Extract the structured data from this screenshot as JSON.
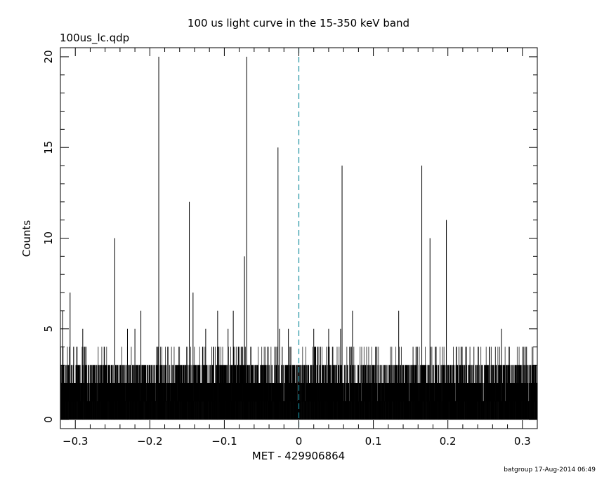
{
  "chart_data": {
    "type": "bar",
    "title": "100 us light curve in the 15-350 keV band",
    "file_label": "100us_lc.qdp",
    "xlabel": "MET - 429906864",
    "ylabel": "Counts",
    "footer": "batgroup 17-Aug-2014 06:49",
    "xlim": [
      -0.32,
      0.32
    ],
    "ylim": [
      -0.5,
      20.5
    ],
    "x_ticks": [
      -0.3,
      -0.2,
      -0.1,
      0,
      0.1,
      0.2,
      0.3
    ],
    "x_tick_labels": [
      "−0.3",
      "−0.2",
      "−0.1",
      "0",
      "0.1",
      "0.2",
      "0.3"
    ],
    "y_ticks": [
      0,
      5,
      10,
      15,
      20
    ],
    "y_tick_labels": [
      "0",
      "5",
      "10",
      "15",
      "20"
    ],
    "reference_line": {
      "x": 0,
      "style": "dashed",
      "color": "#1a8fa0"
    },
    "bin_width": 0.0001,
    "notable_spikes": [
      {
        "x": -0.317,
        "value": 6
      },
      {
        "x": -0.307,
        "value": 7
      },
      {
        "x": -0.29,
        "value": 5
      },
      {
        "x": -0.247,
        "value": 10
      },
      {
        "x": -0.23,
        "value": 5
      },
      {
        "x": -0.22,
        "value": 5
      },
      {
        "x": -0.212,
        "value": 6
      },
      {
        "x": -0.188,
        "value": 20
      },
      {
        "x": -0.147,
        "value": 12
      },
      {
        "x": -0.142,
        "value": 7
      },
      {
        "x": -0.125,
        "value": 5
      },
      {
        "x": -0.109,
        "value": 6
      },
      {
        "x": -0.095,
        "value": 5
      },
      {
        "x": -0.088,
        "value": 6
      },
      {
        "x": -0.073,
        "value": 9
      },
      {
        "x": -0.07,
        "value": 20
      },
      {
        "x": -0.028,
        "value": 15
      },
      {
        "x": -0.026,
        "value": 5
      },
      {
        "x": -0.014,
        "value": 5
      },
      {
        "x": 0.02,
        "value": 5
      },
      {
        "x": 0.04,
        "value": 5
      },
      {
        "x": 0.056,
        "value": 5
      },
      {
        "x": 0.058,
        "value": 14
      },
      {
        "x": 0.072,
        "value": 6
      },
      {
        "x": 0.134,
        "value": 6
      },
      {
        "x": 0.165,
        "value": 14
      },
      {
        "x": 0.176,
        "value": 10
      },
      {
        "x": 0.198,
        "value": 11
      },
      {
        "x": 0.272,
        "value": 5
      }
    ],
    "baseline_counts": [
      0,
      1,
      2,
      3,
      4
    ],
    "grid": false,
    "colors": {
      "axes": "#000000",
      "data": "#000000",
      "reference_line": "#1a8fa0"
    }
  }
}
